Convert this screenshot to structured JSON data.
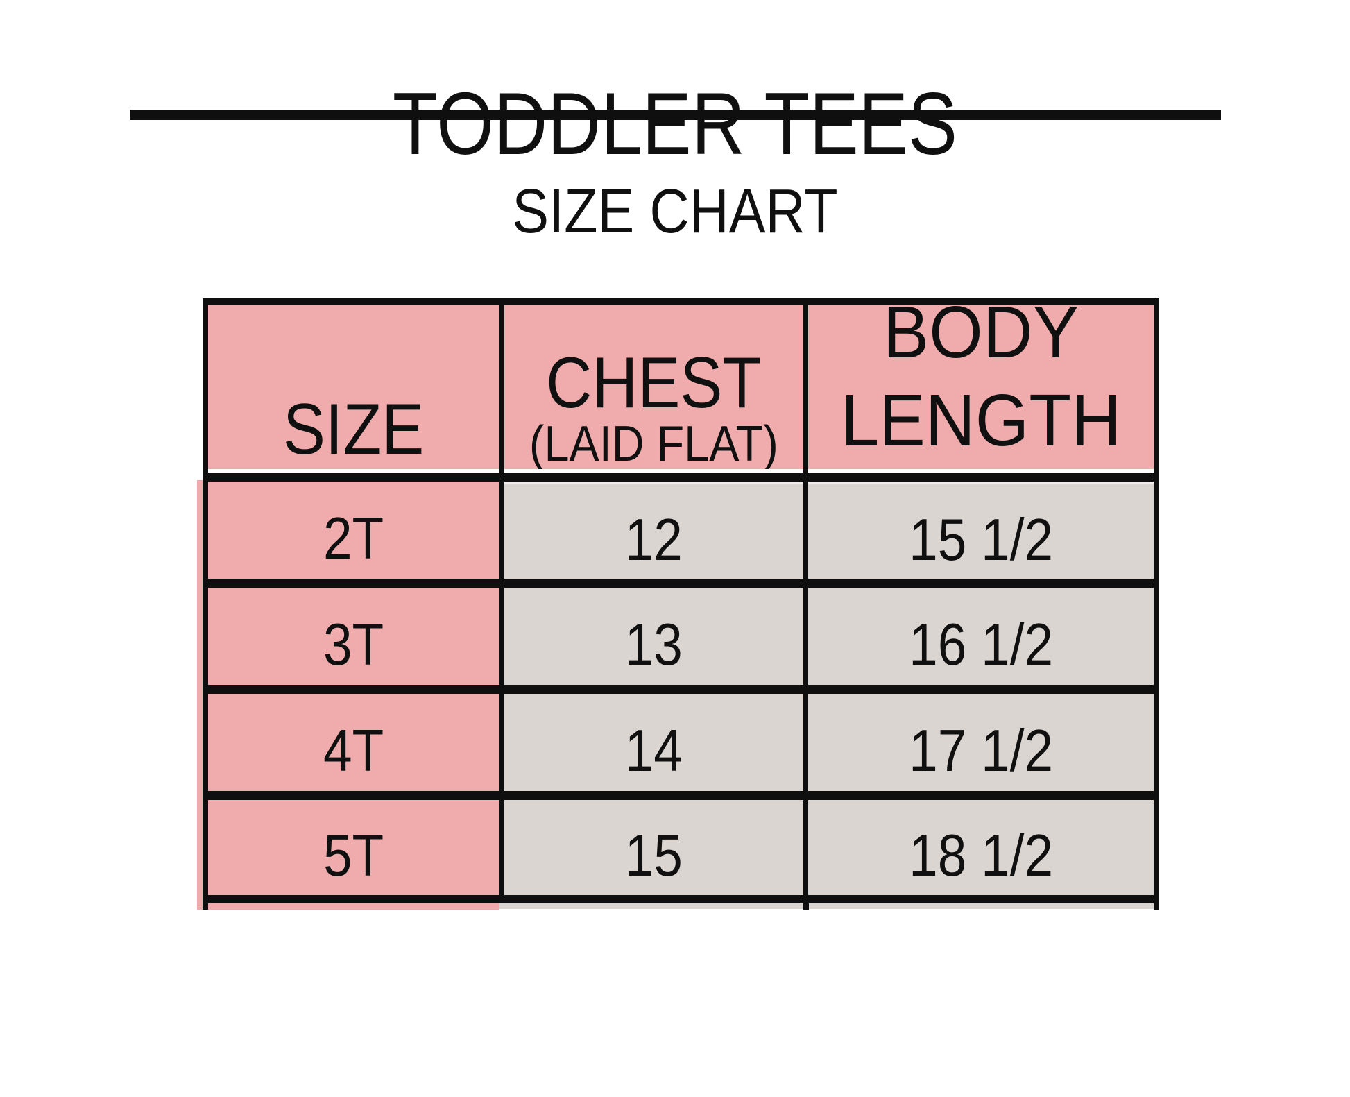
{
  "header": {
    "title": "TODDLER TEES",
    "subtitle": "SIZE CHART"
  },
  "table": {
    "columns": [
      {
        "label": "SIZE",
        "sublabel": ""
      },
      {
        "label": "CHEST",
        "sublabel": "(LAID FLAT)"
      },
      {
        "label": "BODY LENGTH",
        "sublabel": ""
      }
    ],
    "rows": [
      [
        "2T",
        "12",
        "15 1/2"
      ],
      [
        "3T",
        "13",
        "16 1/2"
      ],
      [
        "4T",
        "14",
        "17 1/2"
      ],
      [
        "5T",
        "15",
        "18 1/2"
      ]
    ]
  },
  "colors": {
    "header_pink": "#F0ACAC",
    "cell_gray": "#DBD5D2",
    "line_black": "#0F0F0F",
    "background": "#FFFFFF"
  },
  "chart_data": {
    "type": "table",
    "title": "TODDLER TEES",
    "subtitle": "SIZE CHART",
    "columns": [
      "SIZE",
      "CHEST (LAID FLAT)",
      "BODY LENGTH"
    ],
    "rows": [
      [
        "2T",
        "12",
        "15 1/2"
      ],
      [
        "3T",
        "13",
        "16 1/2"
      ],
      [
        "4T",
        "14",
        "17 1/2"
      ],
      [
        "5T",
        "15",
        "18 1/2"
      ]
    ],
    "numeric": {
      "sizes": [
        "2T",
        "3T",
        "4T",
        "5T"
      ],
      "chest_laid_flat_inches": [
        12,
        13,
        14,
        15
      ],
      "body_length_inches": [
        15.5,
        16.5,
        17.5,
        18.5
      ]
    }
  }
}
